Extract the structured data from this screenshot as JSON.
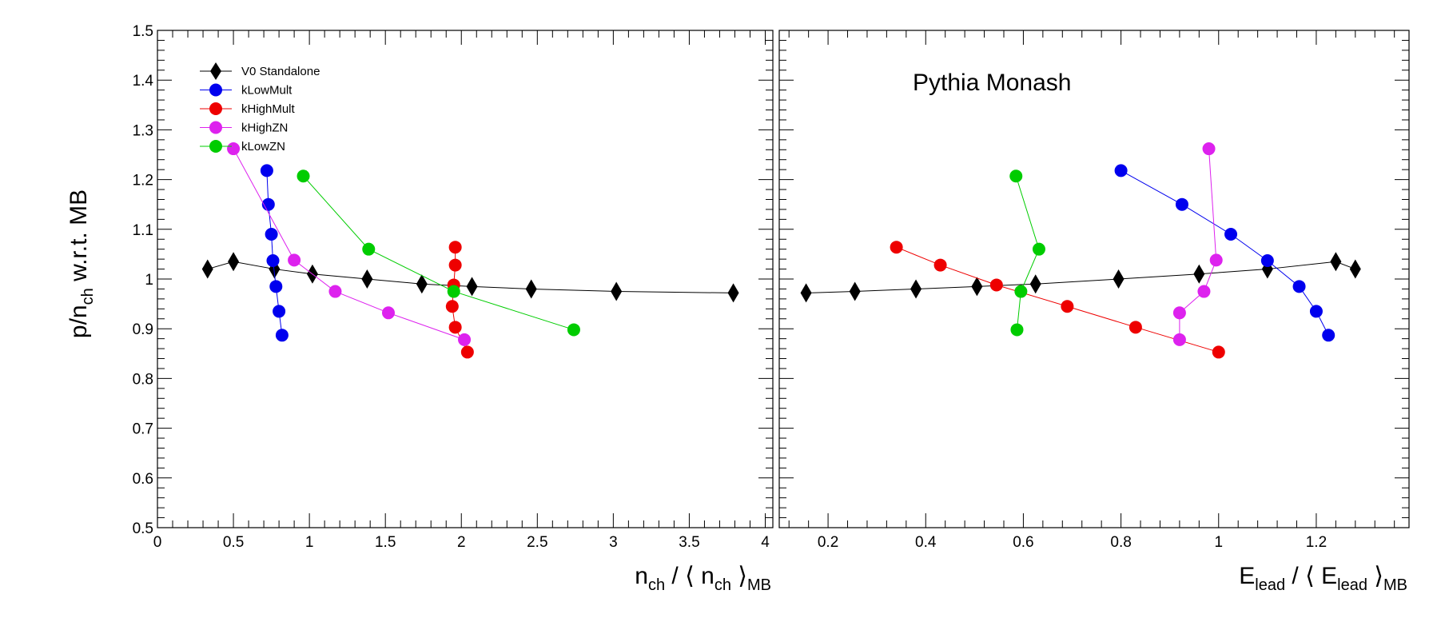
{
  "chart_data": {
    "type": "scatter",
    "y_title": {
      "main": "p/n",
      "sub": "ch",
      "rest": " w.r.t. MB"
    },
    "ylim": [
      0.5,
      1.5
    ],
    "y_ticks": [
      "0.5",
      "0.6",
      "0.7",
      "0.8",
      "0.9",
      "1",
      "1.1",
      "1.2",
      "1.3",
      "1.4",
      "1.5"
    ],
    "legend_position": "top-left",
    "annotation": "Pythia Monash",
    "panels": [
      {
        "id": "left",
        "x_title": {
          "p1": "n",
          "s1": "ch",
          "p2": " / ⟨ n",
          "s2": "ch",
          "p3": " ⟩",
          "s3": "MB"
        },
        "xlim": [
          0,
          4.05
        ],
        "x_ticks": [
          {
            "v": 0,
            "t": "0"
          },
          {
            "v": 0.5,
            "t": "0.5"
          },
          {
            "v": 1,
            "t": "1"
          },
          {
            "v": 1.5,
            "t": "1.5"
          },
          {
            "v": 2,
            "t": "2"
          },
          {
            "v": 2.5,
            "t": "2.5"
          },
          {
            "v": 3,
            "t": "3"
          },
          {
            "v": 3.5,
            "t": "3.5"
          },
          {
            "v": 4,
            "t": "4"
          }
        ],
        "series": [
          {
            "name": "V0 Standalone",
            "color": "#000000",
            "marker": "diamond",
            "x": [
              0.33,
              0.5,
              0.77,
              1.02,
              1.38,
              1.74,
              2.07,
              2.46,
              3.02,
              3.79
            ],
            "y": [
              1.02,
              1.035,
              1.02,
              1.01,
              1.0,
              0.99,
              0.985,
              0.98,
              0.975,
              0.972
            ]
          },
          {
            "name": "kLowMult",
            "color": "#0000ee",
            "marker": "circle",
            "x": [
              0.72,
              0.73,
              0.75,
              0.76,
              0.78,
              0.8,
              0.82
            ],
            "y": [
              1.218,
              1.15,
              1.09,
              1.037,
              0.985,
              0.935,
              0.887
            ]
          },
          {
            "name": "kHighMult",
            "color": "#ee0000",
            "marker": "circle",
            "x": [
              1.96,
              1.96,
              1.95,
              1.94,
              1.96,
              2.04
            ],
            "y": [
              1.064,
              1.028,
              0.988,
              0.945,
              0.903,
              0.853
            ]
          },
          {
            "name": "kHighZN",
            "color": "#dd22ee",
            "marker": "circle",
            "x": [
              0.5,
              0.9,
              1.17,
              1.52,
              2.02
            ],
            "y": [
              1.262,
              1.038,
              0.975,
              0.932,
              0.878
            ]
          },
          {
            "name": "kLowZN",
            "color": "#00cc00",
            "marker": "circle",
            "x": [
              0.96,
              1.39,
              1.95,
              2.74
            ],
            "y": [
              1.207,
              1.06,
              0.975,
              0.898
            ]
          }
        ]
      },
      {
        "id": "right",
        "x_title": {
          "p1": "E",
          "s1": "lead",
          "p2": " / ⟨ E",
          "s2": "lead",
          "p3": " ⟩",
          "s3": "MB"
        },
        "xlim": [
          0.1,
          1.39
        ],
        "x_ticks": [
          {
            "v": 0.2,
            "t": "0.2"
          },
          {
            "v": 0.4,
            "t": "0.4"
          },
          {
            "v": 0.6,
            "t": "0.6"
          },
          {
            "v": 0.8,
            "t": "0.8"
          },
          {
            "v": 1.0,
            "t": "1"
          },
          {
            "v": 1.2,
            "t": "1.2"
          }
        ],
        "series": [
          {
            "name": "V0 Standalone",
            "color": "#000000",
            "marker": "diamond",
            "x": [
              0.155,
              0.255,
              0.38,
              0.505,
              0.625,
              0.795,
              0.96,
              1.1,
              1.24,
              1.28
            ],
            "y": [
              0.972,
              0.975,
              0.98,
              0.985,
              0.99,
              1.0,
              1.01,
              1.02,
              1.035,
              1.02
            ]
          },
          {
            "name": "kLowMult",
            "color": "#0000ee",
            "marker": "circle",
            "x": [
              0.8,
              0.925,
              1.025,
              1.1,
              1.165,
              1.2,
              1.225
            ],
            "y": [
              1.218,
              1.15,
              1.09,
              1.037,
              0.985,
              0.935,
              0.887
            ]
          },
          {
            "name": "kHighMult",
            "color": "#ee0000",
            "marker": "circle",
            "x": [
              0.34,
              0.43,
              0.545,
              0.69,
              0.83,
              1.0
            ],
            "y": [
              1.064,
              1.028,
              0.988,
              0.945,
              0.903,
              0.853
            ]
          },
          {
            "name": "kHighZN",
            "color": "#dd22ee",
            "marker": "circle",
            "x": [
              0.98,
              0.995,
              0.97,
              0.92,
              0.92
            ],
            "y": [
              1.262,
              1.038,
              0.975,
              0.932,
              0.878
            ]
          },
          {
            "name": "kLowZN",
            "color": "#00cc00",
            "marker": "circle",
            "x": [
              0.585,
              0.632,
              0.595,
              0.587
            ],
            "y": [
              1.207,
              1.06,
              0.975,
              0.898
            ]
          }
        ]
      }
    ],
    "legend": [
      {
        "name": "V0 Standalone",
        "color": "#000000",
        "marker": "diamond"
      },
      {
        "name": "kLowMult",
        "color": "#0000ee",
        "marker": "circle"
      },
      {
        "name": "kHighMult",
        "color": "#ee0000",
        "marker": "circle"
      },
      {
        "name": "kHighZN",
        "color": "#dd22ee",
        "marker": "circle"
      },
      {
        "name": "kLowZN",
        "color": "#00cc00",
        "marker": "circle"
      }
    ]
  }
}
